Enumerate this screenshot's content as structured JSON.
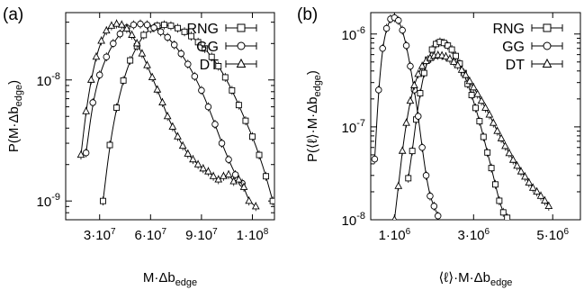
{
  "chart_data": [
    {
      "type": "scatter",
      "panel_label": "(a)",
      "xlabel": "M·Δb",
      "xlabel_sub": "edge",
      "ylabel": "P(M·Δb",
      "ylabel_sub": "edge",
      "ylabel_close": ")",
      "xscale": "linear",
      "yscale": "log",
      "xlim": [
        10000000.0,
        133000000.0
      ],
      "ylim": [
        7e-10,
        3.6e-08
      ],
      "xticks": [
        {
          "value": 30000000.0,
          "label": "3·10"
        },
        {
          "value": 60000000.0,
          "label": "6·10"
        },
        {
          "value": 90000000.0,
          "label": "9·10"
        },
        {
          "value": 120000000.0,
          "label": "1·10"
        }
      ],
      "xtick_exponents": [
        "7",
        "7",
        "7",
        "8"
      ],
      "yticks": [
        {
          "value": 1e-09,
          "label": "10",
          "exp": "-9"
        },
        {
          "value": 1e-08,
          "label": "10",
          "exp": "-8"
        }
      ],
      "legend": {
        "position": "top-right",
        "entries": [
          {
            "name": "RNG",
            "marker": "square"
          },
          {
            "name": "GG",
            "marker": "circle"
          },
          {
            "name": "DT",
            "marker": "triangle"
          }
        ]
      },
      "series": [
        {
          "name": "RNG",
          "marker": "square",
          "points": [
            [
              32000000.0,
              1e-09
            ],
            [
              36000000.0,
              2.9e-09
            ],
            [
              40000000.0,
              5.9e-09
            ],
            [
              44000000.0,
              9.9e-09
            ],
            [
              48000000.0,
              1.45e-08
            ],
            [
              52000000.0,
              1.9e-08
            ],
            [
              56000000.0,
              2.35e-08
            ],
            [
              60000000.0,
              2.65e-08
            ],
            [
              64000000.0,
              2.8e-08
            ],
            [
              68000000.0,
              2.85e-08
            ],
            [
              72000000.0,
              2.8e-08
            ],
            [
              76000000.0,
              2.68e-08
            ],
            [
              80000000.0,
              2.5e-08
            ],
            [
              84000000.0,
              2.3e-08
            ],
            [
              88000000.0,
              2.05e-08
            ],
            [
              92000000.0,
              1.82e-08
            ],
            [
              96000000.0,
              1.55e-08
            ],
            [
              100000000.0,
              1.3e-08
            ],
            [
              104000000.0,
              1.05e-08
            ],
            [
              108000000.0,
              8.2e-09
            ],
            [
              112000000.0,
              6.2e-09
            ],
            [
              116000000.0,
              4.6e-09
            ],
            [
              120000000.0,
              3.4e-09
            ],
            [
              124000000.0,
              2.4e-09
            ],
            [
              128000000.0,
              1.6e-09
            ],
            [
              132000000.0,
              1e-09
            ]
          ]
        },
        {
          "name": "GG",
          "marker": "circle",
          "points": [
            [
              22000000.0,
              2.5e-09
            ],
            [
              26000000.0,
              6.5e-09
            ],
            [
              30000000.0,
              1.1e-08
            ],
            [
              34000000.0,
              1.55e-08
            ],
            [
              38000000.0,
              2e-08
            ],
            [
              42000000.0,
              2.4e-08
            ],
            [
              46000000.0,
              2.7e-08
            ],
            [
              50000000.0,
              2.85e-08
            ],
            [
              54000000.0,
              2.9e-08
            ],
            [
              58000000.0,
              2.85e-08
            ],
            [
              62000000.0,
              2.7e-08
            ],
            [
              66000000.0,
              2.5e-08
            ],
            [
              70000000.0,
              2.25e-08
            ],
            [
              74000000.0,
              1.95e-08
            ],
            [
              78000000.0,
              1.65e-08
            ],
            [
              82000000.0,
              1.35e-08
            ],
            [
              86000000.0,
              1.07e-08
            ],
            [
              90000000.0,
              8.2e-09
            ],
            [
              94000000.0,
              6e-09
            ],
            [
              98000000.0,
              4.3e-09
            ],
            [
              102000000.0,
              3e-09
            ],
            [
              106000000.0,
              2.2e-09
            ],
            [
              110000000.0,
              1.65e-09
            ],
            [
              114000000.0,
              1.4e-09
            ]
          ]
        },
        {
          "name": "DT",
          "marker": "triangle",
          "points": [
            [
              19000000.0,
              2.4e-09
            ],
            [
              22000000.0,
              5.5e-09
            ],
            [
              25000000.0,
              1e-08
            ],
            [
              28000000.0,
              1.55e-08
            ],
            [
              31000000.0,
              2.1e-08
            ],
            [
              34000000.0,
              2.55e-08
            ],
            [
              37000000.0,
              2.8e-08
            ],
            [
              40000000.0,
              2.9e-08
            ],
            [
              43000000.0,
              2.85e-08
            ],
            [
              46000000.0,
              2.65e-08
            ],
            [
              49000000.0,
              2.35e-08
            ],
            [
              52000000.0,
              2e-08
            ],
            [
              55000000.0,
              1.65e-08
            ],
            [
              58000000.0,
              1.32e-08
            ],
            [
              61000000.0,
              1.05e-08
            ],
            [
              64000000.0,
              8.3e-09
            ],
            [
              67000000.0,
              6.5e-09
            ],
            [
              70000000.0,
              5e-09
            ],
            [
              73000000.0,
              4.1e-09
            ],
            [
              76000000.0,
              3.4e-09
            ],
            [
              79000000.0,
              2.85e-09
            ],
            [
              82000000.0,
              2.45e-09
            ],
            [
              85000000.0,
              2.2e-09
            ],
            [
              88000000.0,
              2e-09
            ],
            [
              91000000.0,
              1.85e-09
            ],
            [
              94000000.0,
              1.75e-09
            ],
            [
              97000000.0,
              1.6e-09
            ],
            [
              100000000.0,
              1.5e-09
            ],
            [
              103000000.0,
              1.6e-09
            ],
            [
              106000000.0,
              1.65e-09
            ],
            [
              109000000.0,
              1.45e-09
            ],
            [
              112000000.0,
              1.5e-09
            ],
            [
              115000000.0,
              1.3e-09
            ],
            [
              118000000.0,
              1e-09
            ],
            [
              122000000.0,
              9e-10
            ]
          ]
        }
      ]
    },
    {
      "type": "scatter",
      "panel_label": "(b)",
      "xlabel": "⟨ℓ⟩·M·Δb",
      "xlabel_sub": "edge",
      "ylabel": "P(⟨ℓ⟩·M·Δb",
      "ylabel_sub": "edge",
      "ylabel_close": ")",
      "xscale": "linear",
      "yscale": "log",
      "xlim": [
        400000,
        5700000
      ],
      "ylim": [
        1e-08,
        1.7e-06
      ],
      "xticks": [
        {
          "value": 1000000.0,
          "label": "1·10"
        },
        {
          "value": 3000000.0,
          "label": "3·10"
        },
        {
          "value": 5000000.0,
          "label": "5·10"
        }
      ],
      "xtick_exponents": [
        "6",
        "6",
        "6"
      ],
      "yticks": [
        {
          "value": 1e-08,
          "label": "10",
          "exp": "-8"
        },
        {
          "value": 1e-07,
          "label": "10",
          "exp": "-7"
        },
        {
          "value": 1e-06,
          "label": "10",
          "exp": "-6"
        }
      ],
      "legend": {
        "position": "top-right",
        "entries": [
          {
            "name": "RNG",
            "marker": "square"
          },
          {
            "name": "GG",
            "marker": "circle"
          },
          {
            "name": "DT",
            "marker": "triangle"
          }
        ]
      },
      "series": [
        {
          "name": "RNG",
          "marker": "square",
          "points": [
            [
              1350000.0,
              2.8e-08
            ],
            [
              1450000.0,
              5.5e-08
            ],
            [
              1550000.0,
              1.2e-07
            ],
            [
              1650000.0,
              2.3e-07
            ],
            [
              1750000.0,
              3.8e-07
            ],
            [
              1850000.0,
              5.3e-07
            ],
            [
              1950000.0,
              6.8e-07
            ],
            [
              2050000.0,
              7.8e-07
            ],
            [
              2150000.0,
              8.2e-07
            ],
            [
              2250000.0,
              8e-07
            ],
            [
              2350000.0,
              7.5e-07
            ],
            [
              2450000.0,
              6.8e-07
            ],
            [
              2550000.0,
              5.8e-07
            ],
            [
              2650000.0,
              4.8e-07
            ],
            [
              2750000.0,
              3.8e-07
            ],
            [
              2850000.0,
              2.9e-07
            ],
            [
              2950000.0,
              2.2e-07
            ],
            [
              3050000.0,
              1.6e-07
            ],
            [
              3150000.0,
              1.15e-07
            ],
            [
              3250000.0,
              7.8e-08
            ],
            [
              3350000.0,
              5.3e-08
            ],
            [
              3450000.0,
              3.6e-08
            ],
            [
              3550000.0,
              2.4e-08
            ],
            [
              3650000.0,
              1.6e-08
            ],
            [
              3750000.0,
              1.2e-08
            ],
            [
              3850000.0,
              1.05e-08
            ]
          ]
        },
        {
          "name": "GG",
          "marker": "circle",
          "points": [
            [
              500000.0,
              4.5e-08
            ],
            [
              600000.0,
              2.5e-07
            ],
            [
              700000.0,
              7e-07
            ],
            [
              800000.0,
              1.15e-06
            ],
            [
              900000.0,
              1.45e-06
            ],
            [
              1000000.0,
              1.5e-06
            ],
            [
              1100000.0,
              1.4e-06
            ],
            [
              1200000.0,
              1.1e-06
            ],
            [
              1300000.0,
              7.5e-07
            ],
            [
              1400000.0,
              4.5e-07
            ],
            [
              1500000.0,
              2.5e-07
            ],
            [
              1600000.0,
              1.3e-07
            ],
            [
              1700000.0,
              6e-08
            ],
            [
              1800000.0,
              3e-08
            ],
            [
              1900000.0,
              1.8e-08
            ],
            [
              2000000.0,
              1.4e-08
            ],
            [
              2100000.0,
              1.1e-08
            ]
          ]
        },
        {
          "name": "DT",
          "marker": "triangle",
          "points": [
            [
              1000000.0,
              1e-08
            ],
            [
              1100000.0,
              2.3e-08
            ],
            [
              1200000.0,
              5.5e-08
            ],
            [
              1300000.0,
              1.1e-07
            ],
            [
              1400000.0,
              1.9e-07
            ],
            [
              1500000.0,
              2.8e-07
            ],
            [
              1600000.0,
              3.7e-07
            ],
            [
              1700000.0,
              4.5e-07
            ],
            [
              1800000.0,
              5.1e-07
            ],
            [
              1900000.0,
              5.5e-07
            ],
            [
              2000000.0,
              5.8e-07
            ],
            [
              2100000.0,
              5.9e-07
            ],
            [
              2200000.0,
              5.85e-07
            ],
            [
              2300000.0,
              5.7e-07
            ],
            [
              2400000.0,
              5.4e-07
            ],
            [
              2500000.0,
              5e-07
            ],
            [
              2600000.0,
              4.6e-07
            ],
            [
              2700000.0,
              4.1e-07
            ],
            [
              2800000.0,
              3.6e-07
            ],
            [
              2900000.0,
              3.1e-07
            ],
            [
              3000000.0,
              2.65e-07
            ],
            [
              3100000.0,
              2.25e-07
            ],
            [
              3200000.0,
              1.9e-07
            ],
            [
              3300000.0,
              1.6e-07
            ],
            [
              3400000.0,
              1.35e-07
            ],
            [
              3500000.0,
              1.1e-07
            ],
            [
              3600000.0,
              9e-08
            ],
            [
              3700000.0,
              7.5e-08
            ],
            [
              3800000.0,
              6.2e-08
            ],
            [
              3900000.0,
              5.2e-08
            ],
            [
              4000000.0,
              4.4e-08
            ],
            [
              4100000.0,
              3.8e-08
            ],
            [
              4200000.0,
              3.3e-08
            ],
            [
              4300000.0,
              2.9e-08
            ],
            [
              4400000.0,
              2.5e-08
            ],
            [
              4500000.0,
              2.2e-08
            ],
            [
              4600000.0,
              2e-08
            ],
            [
              4700000.0,
              1.8e-08
            ],
            [
              4800000.0,
              1.6e-08
            ],
            [
              4900000.0,
              1.4e-08
            ]
          ]
        }
      ]
    }
  ]
}
